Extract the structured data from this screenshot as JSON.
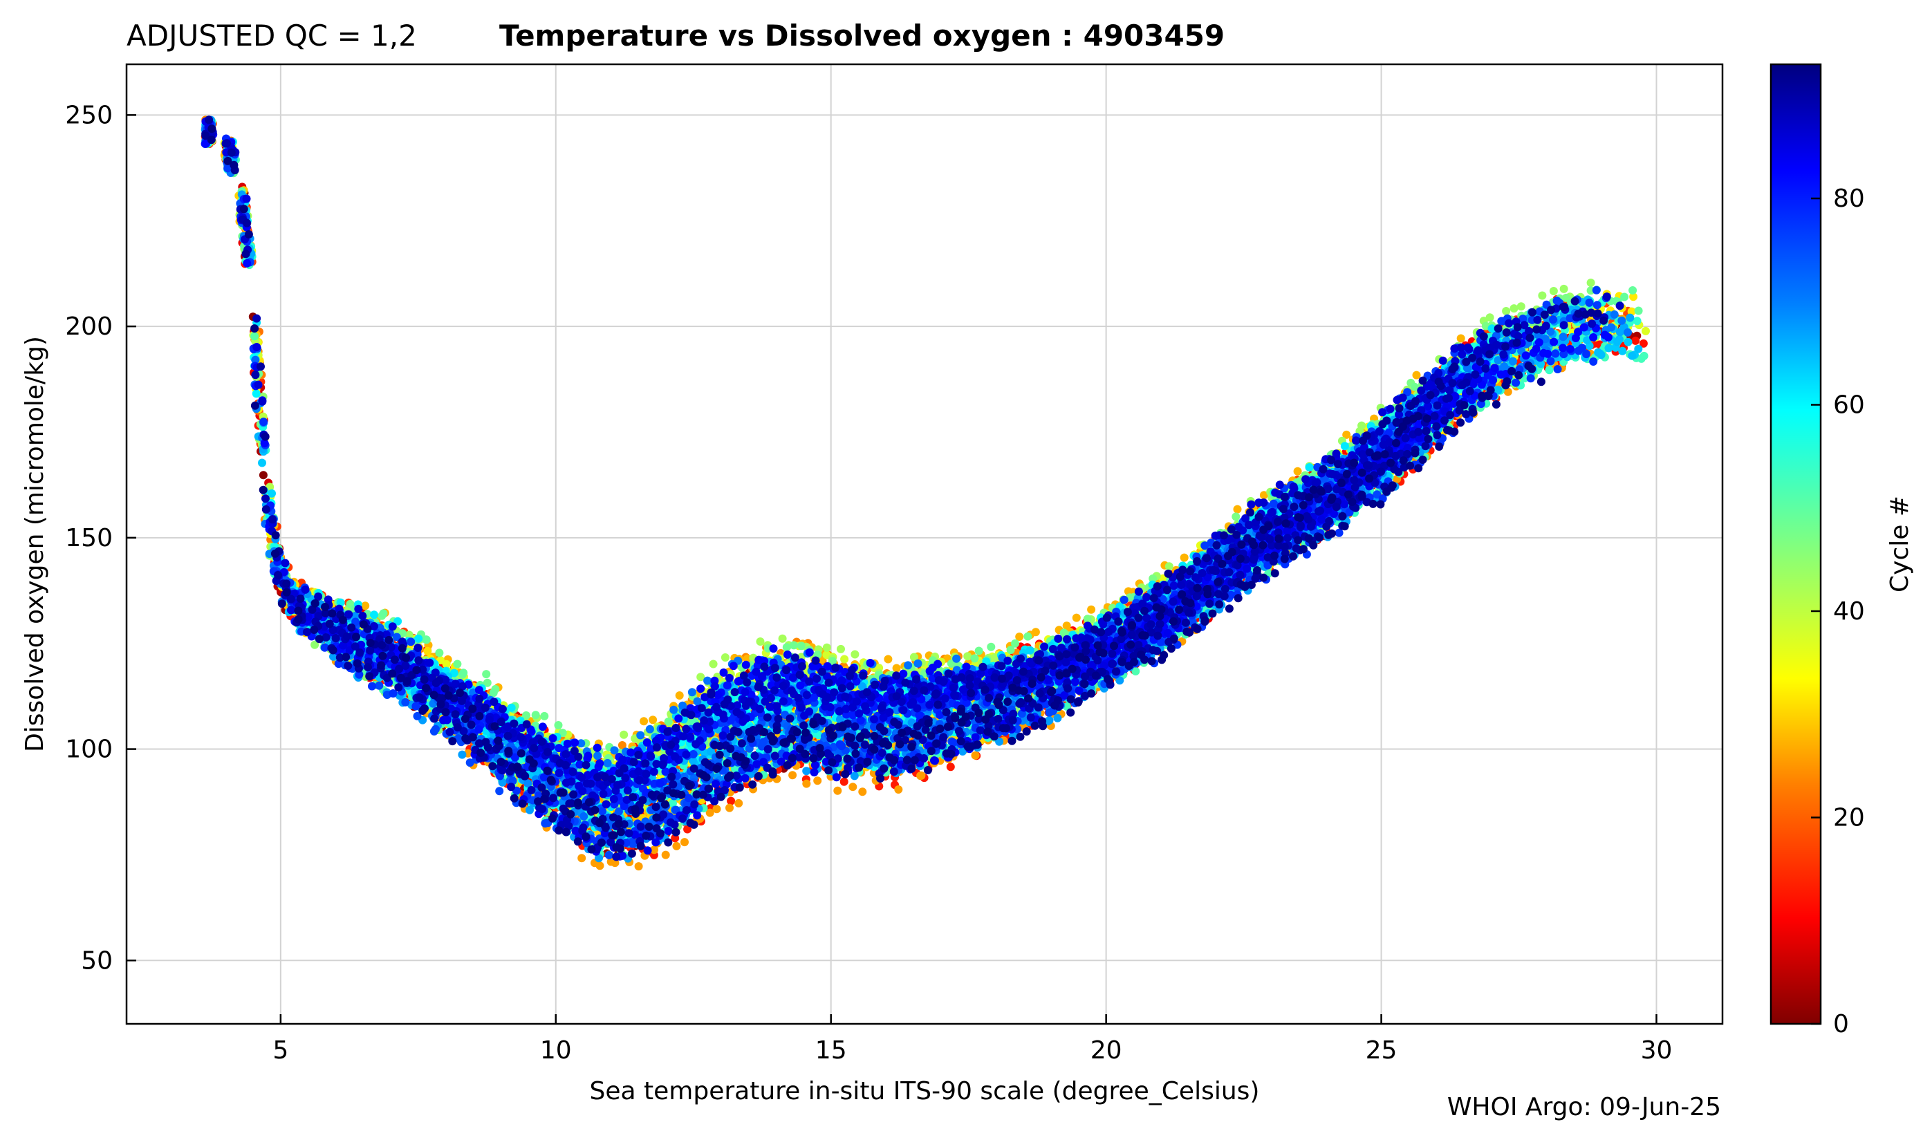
{
  "chart_data": {
    "type": "scatter",
    "title_prefix": "ADJUSTED QC = 1,2",
    "title": "Temperature vs Dissolved oxygen : 4903459",
    "xlabel": "Sea temperature in-situ ITS-90 scale  (degree_Celsius)",
    "ylabel": "Dissolved oxygen  (micromole/kg)",
    "xlim": [
      2.2,
      31.2
    ],
    "ylim": [
      35,
      262
    ],
    "xticks": [
      5,
      10,
      15,
      20,
      25,
      30
    ],
    "yticks": [
      50,
      100,
      150,
      200,
      250
    ],
    "grid": true,
    "colorbar": {
      "label": "Cycle #",
      "colormap": "jet_reversed",
      "range": [
        0,
        93
      ],
      "ticks": [
        0,
        20,
        40,
        60,
        80
      ]
    },
    "profile_shape": {
      "columns": [
        "temperature",
        "oxygen"
      ],
      "points": [
        [
          3.7,
          246
        ],
        [
          4.0,
          244
        ],
        [
          4.3,
          230
        ],
        [
          4.5,
          205
        ],
        [
          4.6,
          185
        ],
        [
          4.75,
          160
        ],
        [
          4.9,
          145
        ],
        [
          5.2,
          135
        ],
        [
          6.0,
          128
        ],
        [
          7.0,
          122
        ],
        [
          8.0,
          113
        ],
        [
          9.0,
          103
        ],
        [
          10.0,
          94
        ],
        [
          11.0,
          88
        ],
        [
          12.0,
          95
        ],
        [
          13.0,
          106
        ],
        [
          14.0,
          112
        ],
        [
          15.0,
          110
        ],
        [
          16.0,
          108
        ],
        [
          17.0,
          111
        ],
        [
          18.0,
          114
        ],
        [
          19.0,
          118
        ],
        [
          20.0,
          124
        ],
        [
          21.0,
          132
        ],
        [
          22.0,
          142
        ],
        [
          23.0,
          152
        ],
        [
          24.0,
          160
        ],
        [
          25.0,
          170
        ],
        [
          26.0,
          182
        ],
        [
          27.0,
          192
        ],
        [
          28.0,
          198
        ],
        [
          29.0,
          201
        ],
        [
          29.8,
          200
        ]
      ],
      "cycle_min": 1,
      "cycle_max": 93,
      "spread_oxygen": 14,
      "spread_temperature": 0.35,
      "mid_range_variation": 25,
      "points_per_profile": 180
    },
    "annotations": [
      {
        "text": "WHOI Argo: 09-Jun-25",
        "position": "bottom-right"
      }
    ]
  },
  "footer": {
    "credit": "WHOI Argo: 09-Jun-25"
  }
}
